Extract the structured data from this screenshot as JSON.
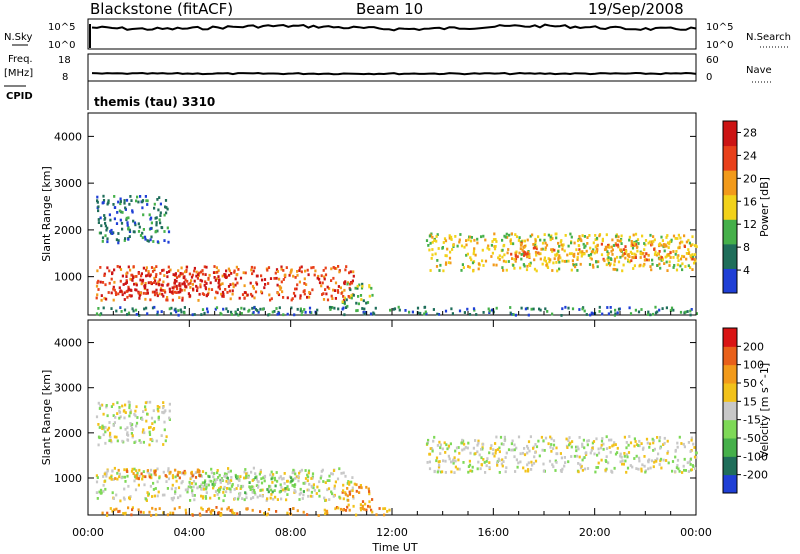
{
  "header": {
    "station": "Blackstone (fitACF)",
    "beam": "Beam 10",
    "date": "19/Sep/2008"
  },
  "nsky_panel": {
    "left_label": "N.Sky",
    "right_label": "N.Search",
    "ticks": [
      "10^5",
      "10^0"
    ],
    "right_ticks": [
      "10^5",
      "10^0"
    ]
  },
  "freq_panel": {
    "left_label_1": "Freq.",
    "left_label_2": "[MHz]",
    "left_ticks": [
      "18",
      "8"
    ],
    "right_label": "Nave",
    "right_ticks": [
      "60",
      "0"
    ],
    "cpid_label": "CPID",
    "cpid_value": "themis (tau) 3310"
  },
  "chart_data": [
    {
      "type": "heatmap",
      "name": "power",
      "xlabel": "Time UT",
      "ylabel": "Slant Range [km]",
      "x_ticks": [
        "00:00",
        "04:00",
        "08:00",
        "12:00",
        "16:00",
        "20:00",
        "00:00"
      ],
      "x_range_hours": [
        0,
        24
      ],
      "y_ticks": [
        1000,
        2000,
        3000,
        4000
      ],
      "y_range_km": [
        180,
        4500
      ],
      "colorbar_label": "Power [dB]",
      "colorbar_ticks": [
        4,
        8,
        12,
        16,
        20,
        24,
        28
      ],
      "colorbar_range": [
        0,
        30
      ],
      "colors": [
        "#1f3fd6",
        "#1f6e5a",
        "#45b04a",
        "#f2d21a",
        "#f29a1a",
        "#e8401a",
        "#cc1414"
      ],
      "regions": [
        {
          "t0": 0.3,
          "t1": 3.2,
          "r0": 1750,
          "r1": 2750,
          "level": 1
        },
        {
          "t0": 0.3,
          "t1": 10.5,
          "r0": 520,
          "r1": 1250,
          "level": 5
        },
        {
          "t0": 1.2,
          "t1": 5.5,
          "r0": 600,
          "r1": 1100,
          "level": 6
        },
        {
          "t0": 10.0,
          "t1": 11.2,
          "r0": 380,
          "r1": 900,
          "level": 2
        },
        {
          "t0": 13.3,
          "t1": 24.0,
          "r0": 1150,
          "r1": 1950,
          "level": 3
        },
        {
          "t0": 16.5,
          "t1": 24.0,
          "r0": 1350,
          "r1": 1750,
          "level": 4
        },
        {
          "t0": 0.3,
          "t1": 24.0,
          "r0": 200,
          "r1": 380,
          "level": 1
        }
      ]
    },
    {
      "type": "heatmap",
      "name": "velocity",
      "xlabel": "Time UT",
      "ylabel": "Slant Range [km]",
      "x_ticks": [
        "00:00",
        "04:00",
        "08:00",
        "12:00",
        "16:00",
        "20:00",
        "00:00"
      ],
      "x_range_hours": [
        0,
        24
      ],
      "y_ticks": [
        1000,
        2000,
        3000,
        4000
      ],
      "y_range_km": [
        180,
        4500
      ],
      "colorbar_label": "Velocity [m s^-1]",
      "colorbar_ticks": [
        "200",
        "100",
        "50",
        "15",
        "-15",
        "-50",
        "-100",
        "-200"
      ],
      "colors": [
        "#1f3fd6",
        "#1f6e5a",
        "#45b04a",
        "#7ed957",
        "#c8c8c8",
        "#f2c21a",
        "#f29a1a",
        "#e8601a",
        "#d91414"
      ],
      "regions": [
        {
          "t0": 0.3,
          "t1": 3.2,
          "r0": 1750,
          "r1": 2750,
          "level": 4
        },
        {
          "t0": 0.3,
          "t1": 10.5,
          "r0": 520,
          "r1": 1250,
          "level": 4
        },
        {
          "t0": 4.0,
          "t1": 8.5,
          "r0": 700,
          "r1": 1100,
          "level": 3
        },
        {
          "t0": 0.8,
          "t1": 4.5,
          "r0": 1000,
          "r1": 1250,
          "level": 6
        },
        {
          "t0": 10.0,
          "t1": 11.2,
          "r0": 380,
          "r1": 900,
          "level": 6
        },
        {
          "t0": 13.3,
          "t1": 24.0,
          "r0": 1150,
          "r1": 1950,
          "level": 4
        },
        {
          "t0": 0.3,
          "t1": 12.0,
          "r0": 200,
          "r1": 380,
          "level": 6
        }
      ]
    }
  ]
}
